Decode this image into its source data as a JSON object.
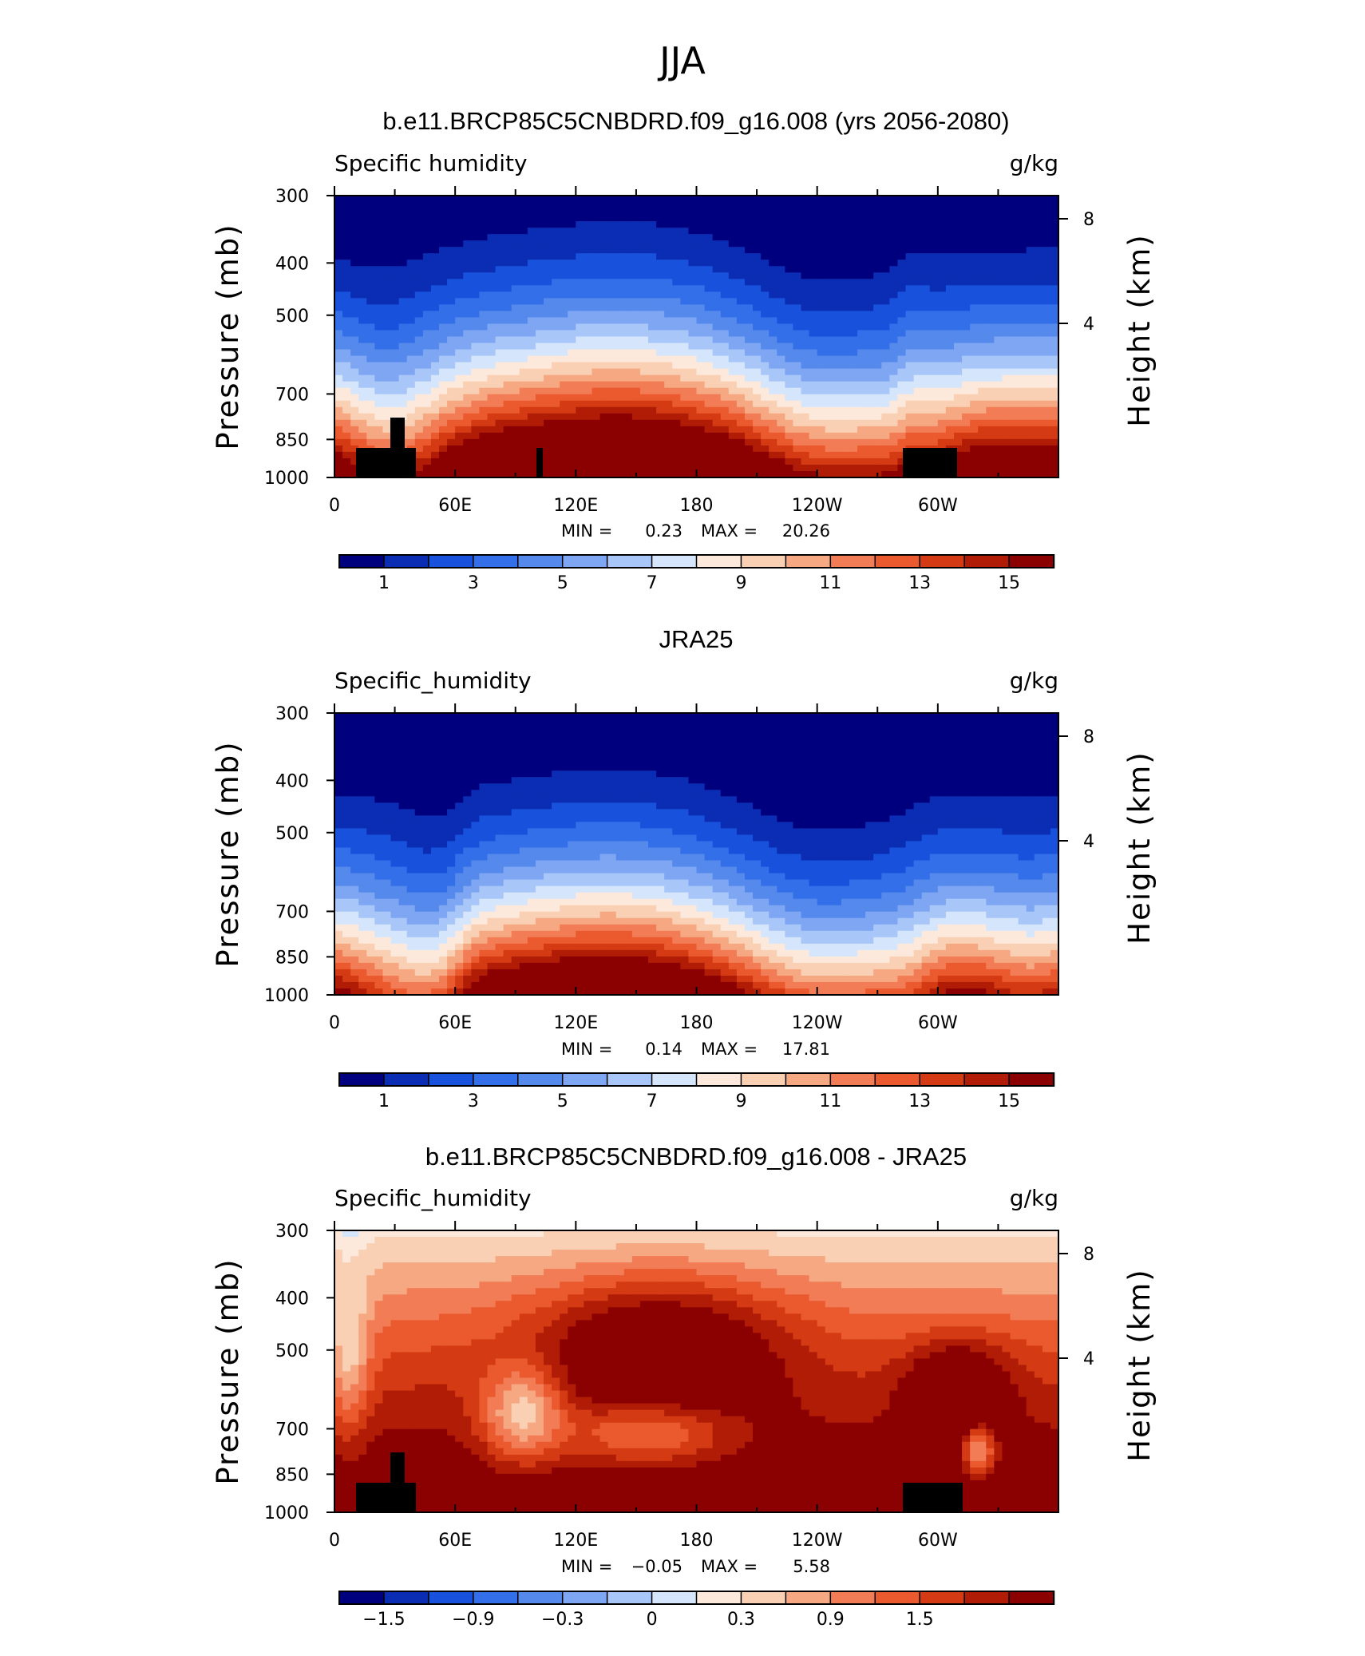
{
  "figure_title": "JJA",
  "colors": {
    "levels": [
      "#00007f",
      "#0a2db4",
      "#1852dc",
      "#336fe8",
      "#5589ec",
      "#7ea6f3",
      "#a9c6f9",
      "#d5e5fb",
      "#fce9dc",
      "#fad0b4",
      "#f6a882",
      "#f27c55",
      "#ea5a2e",
      "#d43a13",
      "#b01c06",
      "#8b0000"
    ],
    "land": "#000000"
  },
  "chart_data": [
    {
      "type": "heatmap",
      "title": "b.e11.BRCP85C5CNBDRD.f09_g16.008 (yrs 2056-2080)",
      "left_label": "Specific humidity",
      "right_label": "g/kg",
      "ylabel": "Pressure (mb)",
      "ylabel_right": "Height (km)",
      "x_ticks": [
        "0",
        "60E",
        "120E",
        "180",
        "120W",
        "60W"
      ],
      "x_range": [
        0,
        360
      ],
      "y_ticks": [
        "300",
        "400",
        "500",
        "700",
        "850",
        "1000"
      ],
      "y_right_ticks": [
        "8",
        "4"
      ],
      "ylim": [
        1000,
        300
      ],
      "min_label": "MIN =",
      "min": "0.23",
      "max_label": "MAX =",
      "max": "20.26",
      "colorbar": {
        "levels": [
          0,
          1,
          2,
          3,
          4,
          5,
          6,
          7,
          8,
          9,
          10,
          11,
          12,
          13,
          14,
          15
        ],
        "labels": [
          "1",
          "3",
          "5",
          "7",
          "9",
          "11",
          "13",
          "15"
        ]
      }
    },
    {
      "type": "heatmap",
      "title": "JRA25",
      "left_label": "Specific_humidity",
      "right_label": "g/kg",
      "ylabel": "Pressure (mb)",
      "ylabel_right": "Height (km)",
      "x_ticks": [
        "0",
        "60E",
        "120E",
        "180",
        "120W",
        "60W"
      ],
      "x_range": [
        0,
        360
      ],
      "y_ticks": [
        "300",
        "400",
        "500",
        "700",
        "850",
        "1000"
      ],
      "y_right_ticks": [
        "8",
        "4"
      ],
      "ylim": [
        1000,
        300
      ],
      "min_label": "MIN =",
      "min": "0.14",
      "max_label": "MAX =",
      "max": "17.81",
      "colorbar": {
        "levels": [
          0,
          1,
          2,
          3,
          4,
          5,
          6,
          7,
          8,
          9,
          10,
          11,
          12,
          13,
          14,
          15
        ],
        "labels": [
          "1",
          "3",
          "5",
          "7",
          "9",
          "11",
          "13",
          "15"
        ]
      }
    },
    {
      "type": "heatmap",
      "title": "b.e11.BRCP85C5CNBDRD.f09_g16.008 - JRA25",
      "left_label": "Specific_humidity",
      "right_label": "g/kg",
      "ylabel": "Pressure (mb)",
      "ylabel_right": "Height (km)",
      "x_ticks": [
        "0",
        "60E",
        "120E",
        "180",
        "120W",
        "60W"
      ],
      "x_range": [
        0,
        360
      ],
      "y_ticks": [
        "300",
        "400",
        "500",
        "700",
        "850",
        "1000"
      ],
      "y_right_ticks": [
        "8",
        "4"
      ],
      "ylim": [
        1000,
        300
      ],
      "min_label": "MIN =",
      "min": "−0.05",
      "max_label": "MAX =",
      "max": "5.58",
      "colorbar": {
        "levels": [
          -1.8,
          -1.5,
          -1.2,
          -0.9,
          -0.6,
          -0.3,
          0,
          0.15,
          0.3,
          0.6,
          0.9,
          1.2,
          1.5,
          1.8
        ],
        "labels": [
          "−1.5",
          "−0.9",
          "−0.3",
          "0",
          "0.3",
          "0.9",
          "1.5"
        ]
      }
    }
  ]
}
